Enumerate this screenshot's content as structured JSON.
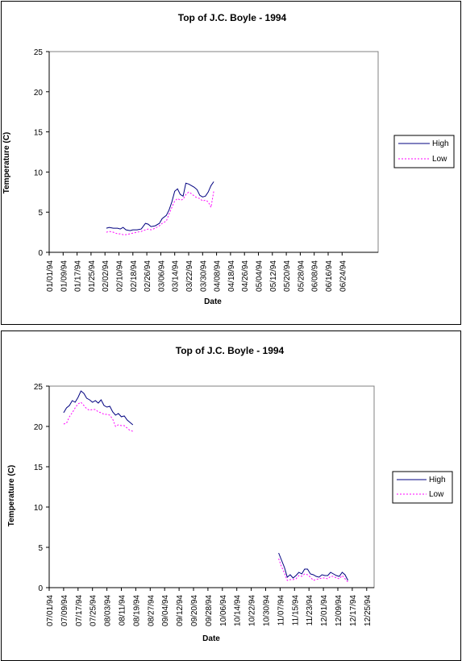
{
  "chart_data": [
    {
      "type": "line",
      "title": "Top of J.C. Boyle - 1994",
      "xlabel": "Date",
      "ylabel": "Temperature (C)",
      "ylim": [
        0,
        25
      ],
      "yticks": [
        0,
        5,
        10,
        15,
        20,
        25
      ],
      "x_tick_labels": [
        "01/01/94",
        "01/09/94",
        "01/17/94",
        "01/25/94",
        "02/02/94",
        "02/10/94",
        "02/18/94",
        "02/26/94",
        "03/06/94",
        "03/14/94",
        "03/22/94",
        "03/30/94",
        "04/08/94",
        "04/18/94",
        "04/26/94",
        "05/04/94",
        "05/12/94",
        "05/20/94",
        "05/28/94",
        "06/08/94",
        "06/16/94",
        "06/24/94"
      ],
      "legend": [
        "High",
        "Low"
      ],
      "legend_position": "right",
      "grid": false,
      "series": [
        {
          "name": "High",
          "color": "#000080",
          "style": "solid",
          "points": [
            [
              4.1,
              3.0
            ],
            [
              4.3,
              3.1
            ],
            [
              4.6,
              3.0
            ],
            [
              4.9,
              3.0
            ],
            [
              5.1,
              2.9
            ],
            [
              5.3,
              3.1
            ],
            [
              5.5,
              2.8
            ],
            [
              5.8,
              2.7
            ],
            [
              6.0,
              2.8
            ],
            [
              6.3,
              2.8
            ],
            [
              6.6,
              2.9
            ],
            [
              6.9,
              3.6
            ],
            [
              7.1,
              3.5
            ],
            [
              7.3,
              3.2
            ],
            [
              7.6,
              3.3
            ],
            [
              7.9,
              3.6
            ],
            [
              8.1,
              4.2
            ],
            [
              8.4,
              4.6
            ],
            [
              8.6,
              5.3
            ],
            [
              8.8,
              6.3
            ],
            [
              9.0,
              7.6
            ],
            [
              9.2,
              7.9
            ],
            [
              9.4,
              7.2
            ],
            [
              9.6,
              7.0
            ],
            [
              9.8,
              8.6
            ],
            [
              10.0,
              8.5
            ],
            [
              10.2,
              8.3
            ],
            [
              10.4,
              8.1
            ],
            [
              10.6,
              7.8
            ],
            [
              10.8,
              7.1
            ],
            [
              11.0,
              6.9
            ],
            [
              11.2,
              7.0
            ],
            [
              11.4,
              7.5
            ],
            [
              11.6,
              8.3
            ],
            [
              11.8,
              8.8
            ]
          ]
        },
        {
          "name": "Low",
          "color": "#ff00ff",
          "style": "dotted",
          "points": [
            [
              4.1,
              2.5
            ],
            [
              4.3,
              2.6
            ],
            [
              4.6,
              2.5
            ],
            [
              4.9,
              2.3
            ],
            [
              5.1,
              2.3
            ],
            [
              5.3,
              2.2
            ],
            [
              5.5,
              2.2
            ],
            [
              5.8,
              2.3
            ],
            [
              6.0,
              2.4
            ],
            [
              6.3,
              2.5
            ],
            [
              6.6,
              2.6
            ],
            [
              6.9,
              2.8
            ],
            [
              7.1,
              2.9
            ],
            [
              7.3,
              2.8
            ],
            [
              7.6,
              3.0
            ],
            [
              7.9,
              3.3
            ],
            [
              8.1,
              3.6
            ],
            [
              8.4,
              3.9
            ],
            [
              8.6,
              4.8
            ],
            [
              8.8,
              5.6
            ],
            [
              9.0,
              6.4
            ],
            [
              9.2,
              6.7
            ],
            [
              9.4,
              6.5
            ],
            [
              9.6,
              6.6
            ],
            [
              9.8,
              7.2
            ],
            [
              10.0,
              7.5
            ],
            [
              10.2,
              7.3
            ],
            [
              10.4,
              7.0
            ],
            [
              10.6,
              6.8
            ],
            [
              10.8,
              6.7
            ],
            [
              11.0,
              6.4
            ],
            [
              11.2,
              6.5
            ],
            [
              11.4,
              6.3
            ],
            [
              11.6,
              5.6
            ],
            [
              11.8,
              7.6
            ]
          ]
        }
      ]
    },
    {
      "type": "line",
      "title": "Top of J.C. Boyle - 1994",
      "xlabel": "Date",
      "ylabel": "Temperature (C)",
      "ylim": [
        0,
        25
      ],
      "yticks": [
        0,
        5,
        10,
        15,
        20,
        25
      ],
      "x_tick_labels": [
        "07/01/94",
        "07/09/94",
        "07/17/94",
        "07/25/94",
        "08/03/94",
        "08/11/94",
        "08/19/94",
        "08/27/94",
        "09/04/94",
        "09/12/94",
        "09/20/94",
        "09/28/94",
        "10/06/94",
        "10/14/94",
        "10/22/94",
        "10/30/94",
        "11/07/94",
        "11/15/94",
        "11/23/94",
        "12/01/94",
        "12/09/94",
        "12/17/94",
        "12/25/94"
      ],
      "legend": [
        "High",
        "Low"
      ],
      "legend_position": "right",
      "grid": false,
      "series": [
        {
          "name": "High",
          "color": "#000080",
          "style": "solid",
          "points": [
            [
              1.0,
              21.7
            ],
            [
              1.2,
              22.3
            ],
            [
              1.4,
              22.6
            ],
            [
              1.6,
              23.2
            ],
            [
              1.8,
              23.0
            ],
            [
              2.0,
              23.6
            ],
            [
              2.2,
              24.4
            ],
            [
              2.4,
              24.1
            ],
            [
              2.6,
              23.5
            ],
            [
              2.8,
              23.3
            ],
            [
              3.0,
              23.0
            ],
            [
              3.2,
              23.2
            ],
            [
              3.4,
              22.9
            ],
            [
              3.6,
              23.3
            ],
            [
              3.8,
              22.6
            ],
            [
              4.0,
              22.4
            ],
            [
              4.2,
              22.5
            ],
            [
              4.4,
              21.8
            ],
            [
              4.6,
              21.4
            ],
            [
              4.8,
              21.6
            ],
            [
              5.0,
              21.2
            ],
            [
              5.2,
              21.3
            ],
            [
              5.4,
              20.8
            ],
            [
              5.6,
              20.5
            ],
            [
              5.8,
              20.2
            ],
            [
              15.9,
              4.3
            ],
            [
              16.1,
              3.4
            ],
            [
              16.3,
              2.5
            ],
            [
              16.5,
              1.3
            ],
            [
              16.7,
              1.6
            ],
            [
              16.9,
              1.2
            ],
            [
              17.1,
              1.5
            ],
            [
              17.3,
              1.9
            ],
            [
              17.5,
              1.7
            ],
            [
              17.7,
              2.3
            ],
            [
              17.9,
              2.3
            ],
            [
              18.1,
              1.7
            ],
            [
              18.3,
              1.6
            ],
            [
              18.5,
              1.4
            ],
            [
              18.7,
              1.3
            ],
            [
              18.9,
              1.6
            ],
            [
              19.1,
              1.5
            ],
            [
              19.3,
              1.5
            ],
            [
              19.5,
              1.9
            ],
            [
              19.7,
              1.7
            ],
            [
              19.9,
              1.5
            ],
            [
              20.1,
              1.4
            ],
            [
              20.3,
              1.9
            ],
            [
              20.5,
              1.6
            ],
            [
              20.7,
              0.9
            ]
          ]
        },
        {
          "name": "Low",
          "color": "#ff00ff",
          "style": "dotted",
          "points": [
            [
              1.0,
              20.3
            ],
            [
              1.2,
              20.4
            ],
            [
              1.4,
              21.2
            ],
            [
              1.6,
              21.7
            ],
            [
              1.8,
              22.3
            ],
            [
              2.0,
              22.8
            ],
            [
              2.2,
              23.0
            ],
            [
              2.4,
              22.6
            ],
            [
              2.6,
              22.2
            ],
            [
              2.8,
              22.0
            ],
            [
              3.0,
              22.1
            ],
            [
              3.2,
              22.1
            ],
            [
              3.4,
              21.8
            ],
            [
              3.6,
              21.7
            ],
            [
              3.8,
              21.5
            ],
            [
              4.0,
              21.5
            ],
            [
              4.2,
              21.4
            ],
            [
              4.4,
              20.9
            ],
            [
              4.6,
              20.0
            ],
            [
              4.8,
              20.2
            ],
            [
              5.0,
              20.1
            ],
            [
              5.2,
              20.1
            ],
            [
              5.4,
              19.8
            ],
            [
              5.6,
              19.5
            ],
            [
              5.8,
              19.4
            ],
            [
              15.9,
              3.6
            ],
            [
              16.1,
              2.6
            ],
            [
              16.3,
              1.8
            ],
            [
              16.5,
              0.9
            ],
            [
              16.7,
              1.0
            ],
            [
              16.9,
              1.0
            ],
            [
              17.1,
              1.1
            ],
            [
              17.3,
              1.5
            ],
            [
              17.5,
              1.4
            ],
            [
              17.7,
              1.7
            ],
            [
              17.9,
              1.6
            ],
            [
              18.1,
              1.3
            ],
            [
              18.3,
              0.9
            ],
            [
              18.5,
              1.0
            ],
            [
              18.7,
              1.1
            ],
            [
              18.9,
              1.2
            ],
            [
              19.1,
              1.2
            ],
            [
              19.3,
              1.1
            ],
            [
              19.5,
              1.4
            ],
            [
              19.7,
              1.4
            ],
            [
              19.9,
              1.2
            ],
            [
              20.1,
              1.1
            ],
            [
              20.3,
              1.5
            ],
            [
              20.5,
              1.1
            ],
            [
              20.7,
              0.7
            ]
          ]
        }
      ]
    }
  ]
}
